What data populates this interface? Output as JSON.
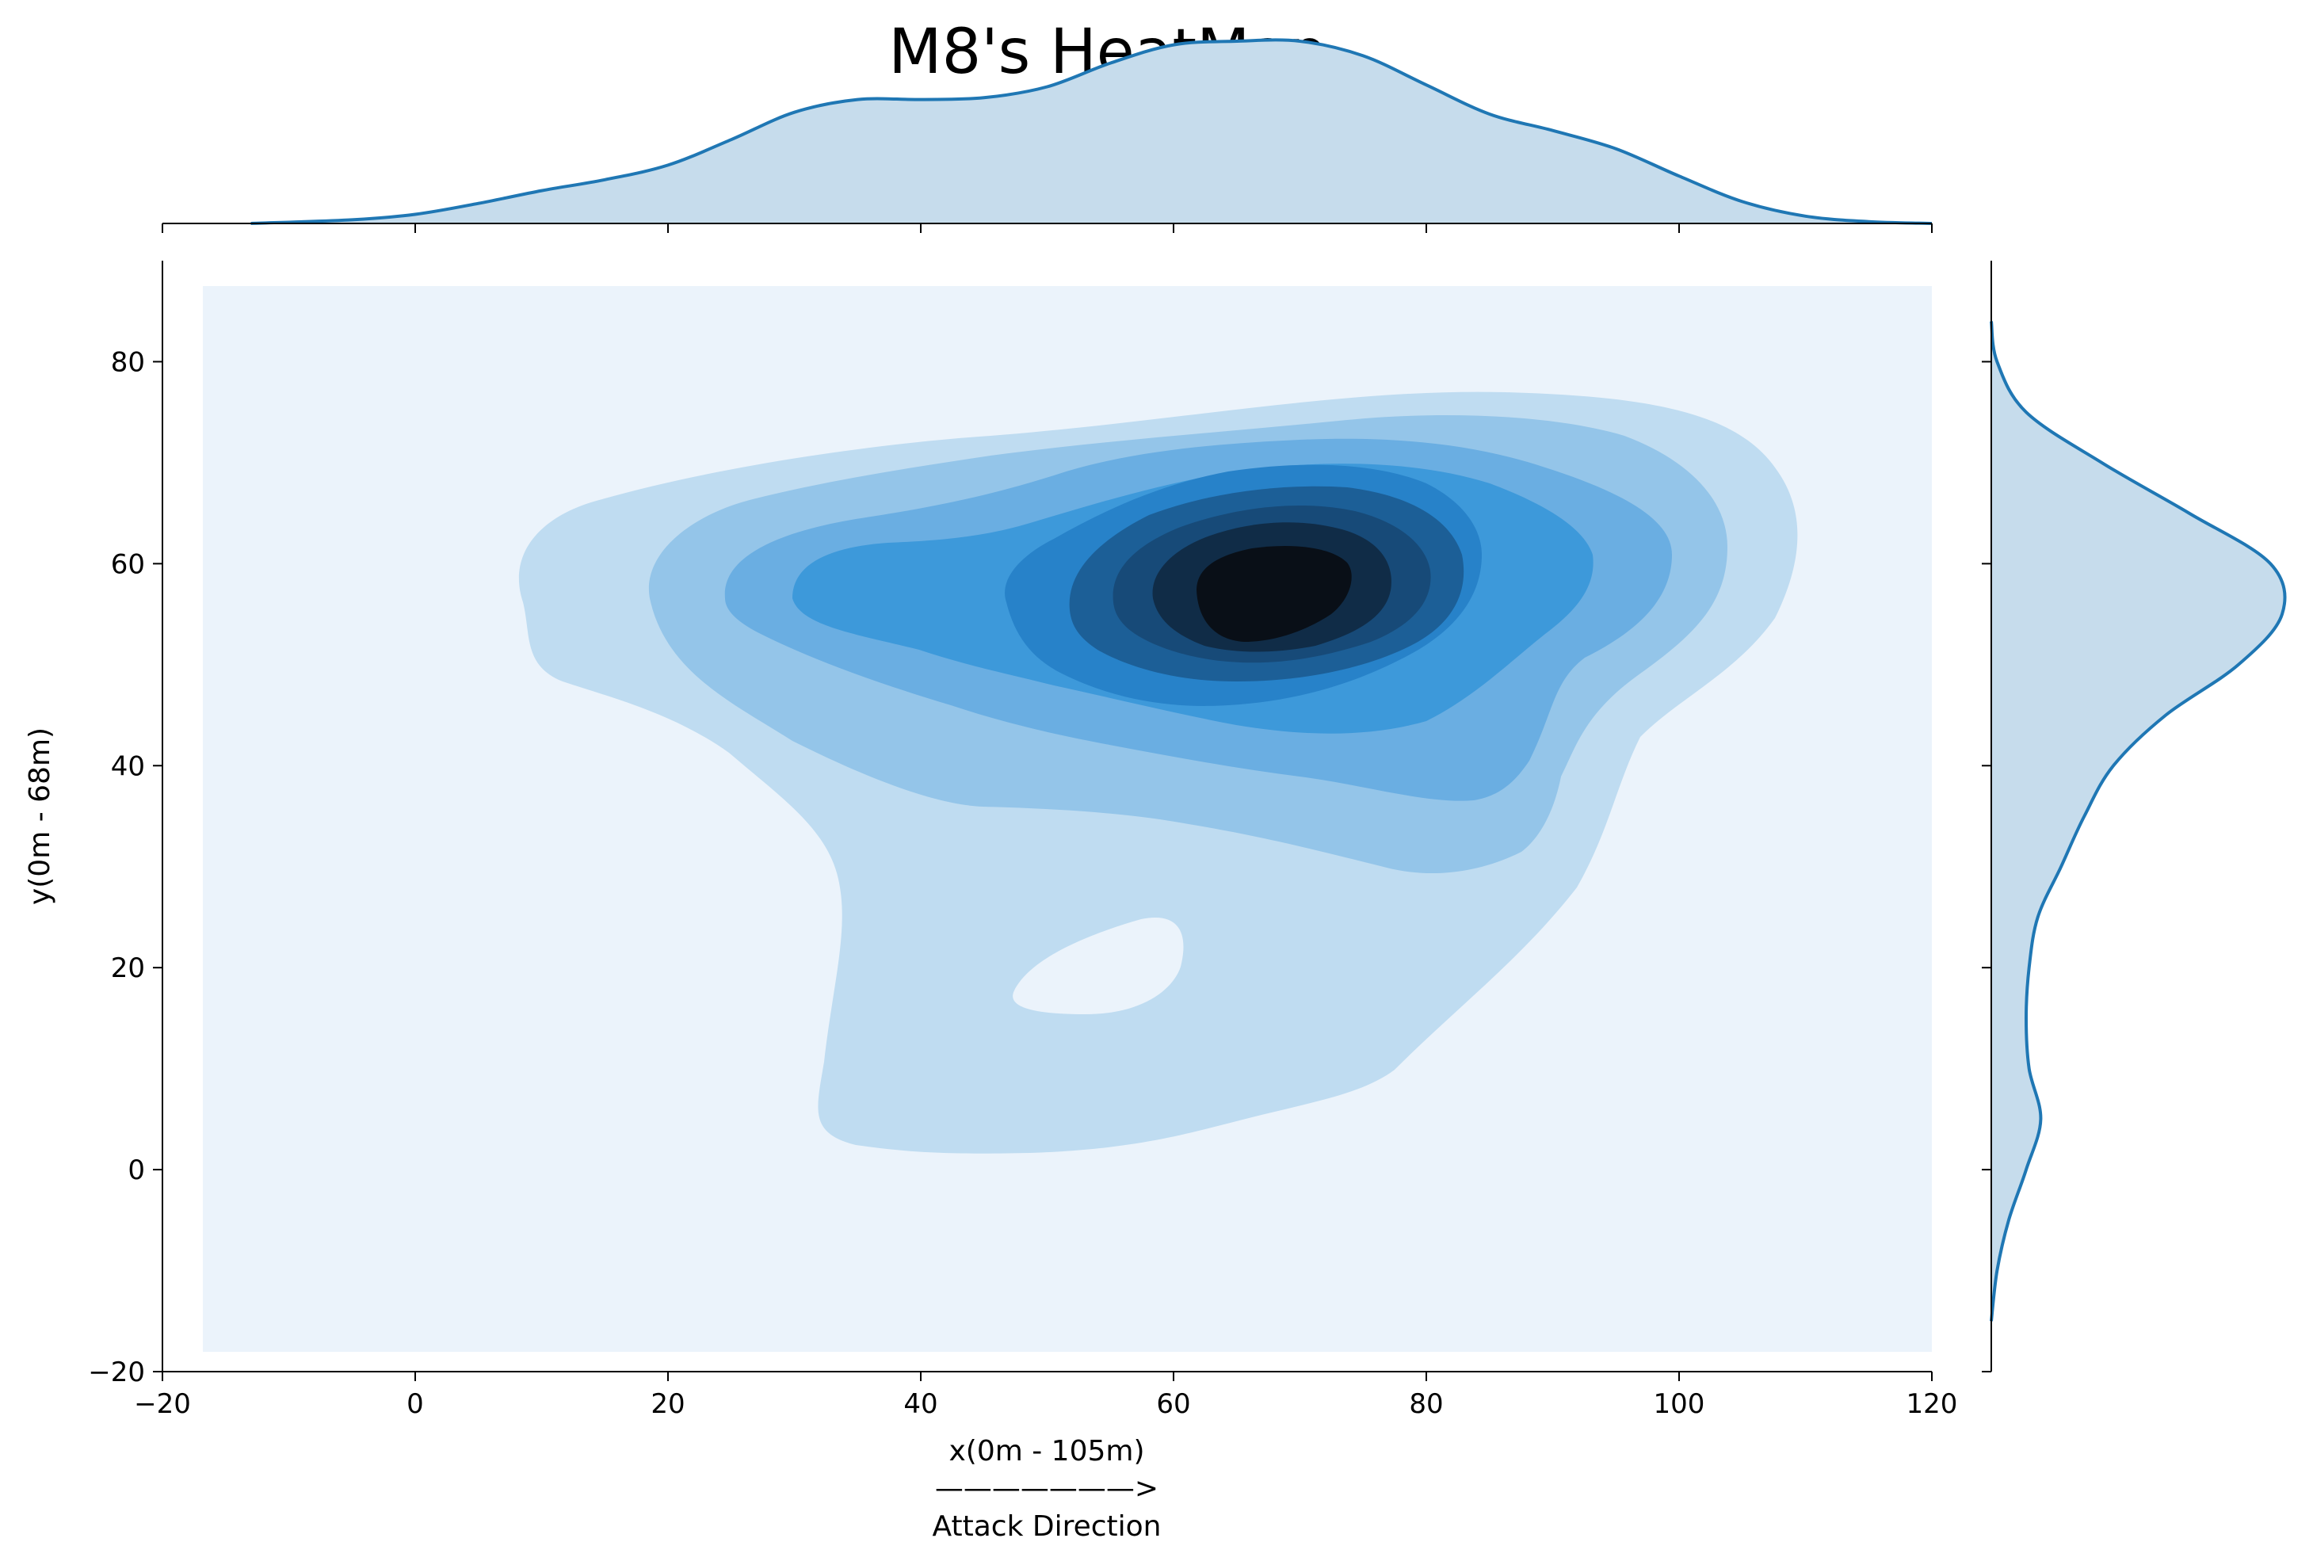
{
  "chart_data": {
    "type": "heatmap",
    "subtype": "kde-joint-plot",
    "title": "M8's HeatMap",
    "xlabel": "x(0m - 105m)",
    "xlabel_line2": "———————>",
    "xlabel_line3": "Attack Direction",
    "ylabel": "y(0m - 68m)",
    "xlim": [
      -20,
      120
    ],
    "ylim": [
      -20,
      90
    ],
    "xticks": [
      -20,
      0,
      20,
      40,
      60,
      80,
      100,
      120
    ],
    "xtick_labels": [
      "−20",
      "0",
      "20",
      "40",
      "60",
      "80",
      "100",
      "120"
    ],
    "yticks": [
      -20,
      0,
      20,
      40,
      60,
      80
    ],
    "ytick_labels": [
      "−20",
      "0",
      "20",
      "40",
      "60",
      "80"
    ],
    "grid": false,
    "colormap": "Blues",
    "density_peak": {
      "x": 66,
      "y": 57
    },
    "hole": {
      "x": 58,
      "y": 21
    },
    "marginal_x": {
      "x": [
        -13,
        -5,
        0,
        5,
        10,
        15,
        20,
        25,
        30,
        35,
        40,
        45,
        50,
        55,
        60,
        65,
        70,
        75,
        80,
        85,
        90,
        95,
        100,
        105,
        110,
        115,
        120
      ],
      "density": [
        0.0,
        0.02,
        0.05,
        0.11,
        0.18,
        0.24,
        0.32,
        0.46,
        0.61,
        0.68,
        0.68,
        0.69,
        0.75,
        0.88,
        0.98,
        1.0,
        1.0,
        0.92,
        0.76,
        0.6,
        0.51,
        0.41,
        0.26,
        0.12,
        0.04,
        0.01,
        0.0
      ]
    },
    "marginal_y": {
      "y": [
        -15,
        -10,
        -5,
        0,
        5,
        10,
        15,
        20,
        25,
        30,
        35,
        40,
        45,
        50,
        55,
        60,
        65,
        70,
        75,
        80,
        84
      ],
      "density": [
        0.0,
        0.02,
        0.06,
        0.12,
        0.17,
        0.13,
        0.12,
        0.13,
        0.16,
        0.24,
        0.32,
        0.42,
        0.6,
        0.85,
        1.0,
        0.96,
        0.68,
        0.38,
        0.12,
        0.02,
        0.0
      ]
    },
    "colors": {
      "line": "#1f77b4",
      "marginal_fill": "#c6dcec",
      "levels": [
        "#ebf3fb",
        "#bfdcf1",
        "#94c5e9",
        "#6aaee2",
        "#3d99da",
        "#2782c9",
        "#1c5f97",
        "#174a78",
        "#102c47",
        "#090f17"
      ]
    }
  }
}
